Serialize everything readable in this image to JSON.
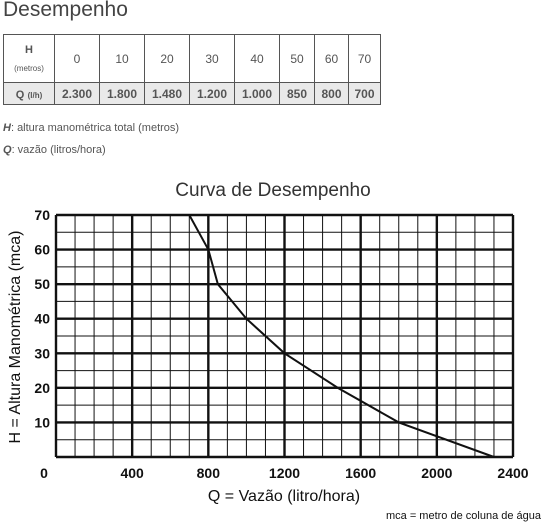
{
  "heading": "Desempenho",
  "table": {
    "h_label": "H",
    "h_unit": "(metros)",
    "q_label": "Q",
    "q_unit": "(l/h)",
    "h_values": [
      "0",
      "10",
      "20",
      "30",
      "40",
      "50",
      "60",
      "70"
    ],
    "q_values": [
      "2.300",
      "1.800",
      "1.480",
      "1.200",
      "1.000",
      "850",
      "800",
      "700"
    ]
  },
  "notes": {
    "h_abbr": "H",
    "h_text": ": altura manométrica total (metros)",
    "q_abbr": "Q",
    "q_text": ": vazão (litros/hora)"
  },
  "chart_data": {
    "type": "line",
    "title": "Curva de Desempenho",
    "xlabel": "Q = Vazão (litro/hora)",
    "ylabel": "H = Altura Manométrica (mca)",
    "xlim": [
      0,
      2400
    ],
    "ylim": [
      0,
      70
    ],
    "x_ticks": [
      0,
      400,
      800,
      1200,
      1600,
      2000,
      2400
    ],
    "y_ticks": [
      0,
      10,
      20,
      30,
      40,
      50,
      60,
      70
    ],
    "x_tick_labels": [
      "0",
      "400",
      "800",
      "1200",
      "1600",
      "2000",
      "2400"
    ],
    "y_tick_labels": [
      "0",
      "10",
      "20",
      "30",
      "40",
      "50",
      "60",
      "70"
    ],
    "x_minor_step": 100,
    "y_minor_step": 5,
    "grid": true,
    "footnote": "mca = metro de coluna de água",
    "series": [
      {
        "color": "#111111",
        "x": [
          700,
          800,
          850,
          1000,
          1200,
          1480,
          1800,
          2300
        ],
        "y": [
          70,
          60,
          50,
          40,
          30,
          20,
          10,
          0
        ]
      }
    ]
  }
}
